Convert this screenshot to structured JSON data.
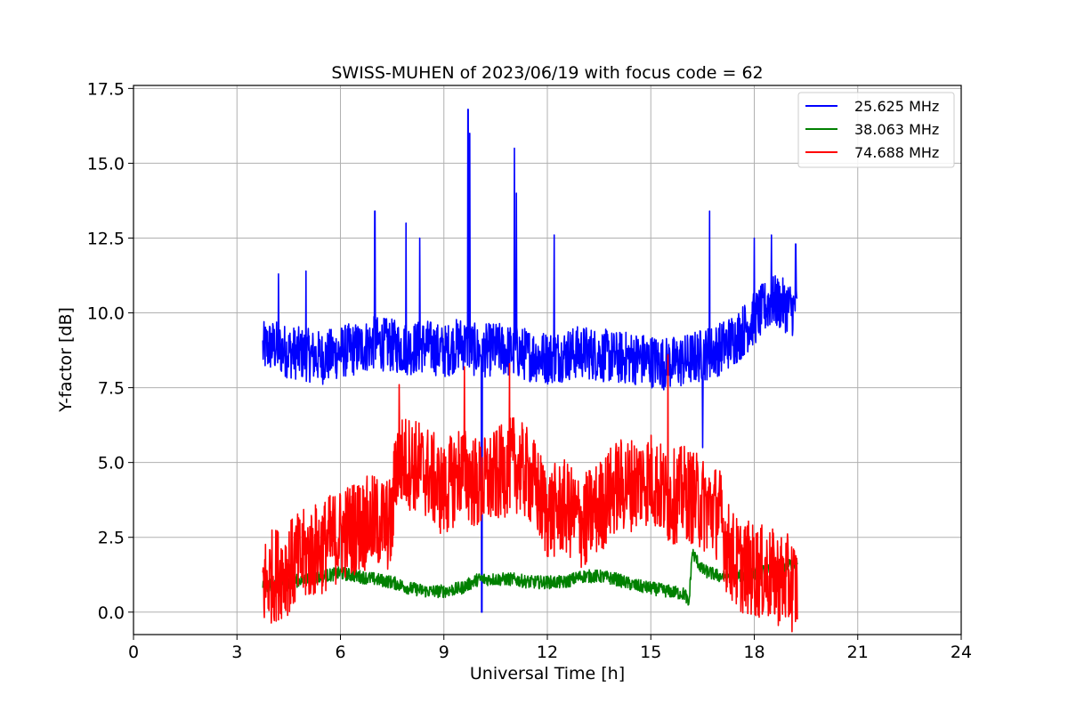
{
  "chart_data": {
    "type": "line",
    "title": "SWISS-MUHEN of 2023/06/19 with focus code = 62",
    "xlabel": "Universal Time [h]",
    "ylabel": "Y-factor [dB]",
    "xlim": [
      0,
      24
    ],
    "ylim": [
      -0.75,
      17.6
    ],
    "xticks": [
      0,
      3,
      6,
      9,
      12,
      15,
      18,
      21,
      24
    ],
    "xtick_labels": [
      "0",
      "3",
      "6",
      "9",
      "12",
      "15",
      "18",
      "21",
      "24"
    ],
    "yticks": [
      0,
      2.5,
      5,
      7.5,
      10,
      12.5,
      15,
      17.5
    ],
    "ytick_labels": [
      "0.0",
      "2.5",
      "5.0",
      "7.5",
      "10.0",
      "12.5",
      "15.0",
      "17.5"
    ],
    "grid": true,
    "legend_position": "top-right",
    "series": [
      {
        "name": "25.625 MHz",
        "color": "#0000ff",
        "x": [
          3.75,
          4.0,
          4.5,
          5.0,
          5.5,
          6.0,
          6.5,
          7.0,
          7.5,
          8.0,
          8.5,
          9.0,
          9.5,
          10.0,
          10.5,
          11.0,
          11.5,
          12.0,
          12.5,
          13.0,
          13.5,
          14.0,
          14.5,
          15.0,
          15.5,
          16.0,
          16.5,
          17.0,
          17.5,
          18.0,
          18.5,
          19.0,
          19.25
        ],
        "values": [
          8.8,
          8.9,
          8.7,
          8.6,
          8.5,
          8.7,
          8.8,
          9.0,
          8.9,
          8.8,
          8.9,
          8.7,
          9.0,
          8.7,
          8.8,
          8.7,
          8.6,
          8.5,
          8.6,
          8.7,
          8.6,
          8.5,
          8.5,
          8.4,
          8.3,
          8.4,
          8.6,
          8.8,
          9.2,
          9.8,
          10.4,
          10.2,
          10.0
        ],
        "spikes": [
          {
            "x": 4.2,
            "value": 11.3
          },
          {
            "x": 5.0,
            "value": 11.4
          },
          {
            "x": 7.0,
            "value": 13.4
          },
          {
            "x": 7.9,
            "value": 13.0
          },
          {
            "x": 8.3,
            "value": 12.5
          },
          {
            "x": 9.7,
            "value": 16.8
          },
          {
            "x": 9.75,
            "value": 16.0
          },
          {
            "x": 10.1,
            "value": 0.0
          },
          {
            "x": 11.05,
            "value": 15.5
          },
          {
            "x": 11.1,
            "value": 14.0
          },
          {
            "x": 12.2,
            "value": 12.6
          },
          {
            "x": 16.7,
            "value": 13.4
          },
          {
            "x": 16.5,
            "value": 5.5
          },
          {
            "x": 18.0,
            "value": 12.5
          },
          {
            "x": 18.5,
            "value": 12.6
          },
          {
            "x": 19.2,
            "value": 12.3
          }
        ]
      },
      {
        "name": "38.063 MHz",
        "color": "#008000",
        "x": [
          3.75,
          4.0,
          4.5,
          5.0,
          5.5,
          6.0,
          6.5,
          7.0,
          7.5,
          8.0,
          8.5,
          9.0,
          9.5,
          10.0,
          10.5,
          11.0,
          11.5,
          12.0,
          12.5,
          13.0,
          13.5,
          14.0,
          14.5,
          15.0,
          15.5,
          16.0,
          16.1,
          16.2,
          16.5,
          17.0,
          17.5,
          18.0,
          18.5,
          19.0,
          19.25
        ],
        "values": [
          0.9,
          0.9,
          1.0,
          1.1,
          1.2,
          1.3,
          1.2,
          1.1,
          1.0,
          0.8,
          0.7,
          0.7,
          0.8,
          1.1,
          1.1,
          1.1,
          1.0,
          1.0,
          1.0,
          1.2,
          1.2,
          1.1,
          0.9,
          0.8,
          0.7,
          0.6,
          0.2,
          2.0,
          1.4,
          1.2,
          1.2,
          1.3,
          1.4,
          1.6,
          1.6
        ]
      },
      {
        "name": "74.688 MHz",
        "color": "#ff0000",
        "x": [
          3.75,
          4.0,
          4.5,
          5.0,
          5.5,
          6.0,
          6.5,
          7.0,
          7.5,
          7.6,
          8.0,
          8.5,
          9.0,
          9.5,
          10.0,
          10.5,
          11.0,
          11.5,
          12.0,
          12.5,
          13.0,
          13.5,
          14.0,
          14.5,
          15.0,
          15.5,
          16.0,
          16.5,
          17.0,
          17.2,
          17.5,
          18.0,
          18.5,
          19.0,
          19.25
        ],
        "values": [
          0.9,
          1.2,
          1.5,
          1.9,
          2.2,
          2.6,
          2.9,
          3.0,
          2.9,
          5.0,
          5.0,
          4.7,
          4.0,
          4.8,
          4.2,
          4.5,
          5.0,
          4.5,
          3.3,
          3.5,
          3.0,
          3.5,
          4.2,
          4.3,
          4.5,
          3.8,
          4.0,
          3.6,
          3.3,
          2.2,
          1.6,
          1.4,
          1.2,
          1.0,
          0.8
        ],
        "spikes": [
          {
            "x": 7.7,
            "value": 7.6
          },
          {
            "x": 9.6,
            "value": 8.2
          },
          {
            "x": 10.9,
            "value": 8.3
          },
          {
            "x": 15.5,
            "value": 8.6
          },
          {
            "x": 13.1,
            "value": 1.6
          }
        ]
      }
    ]
  }
}
